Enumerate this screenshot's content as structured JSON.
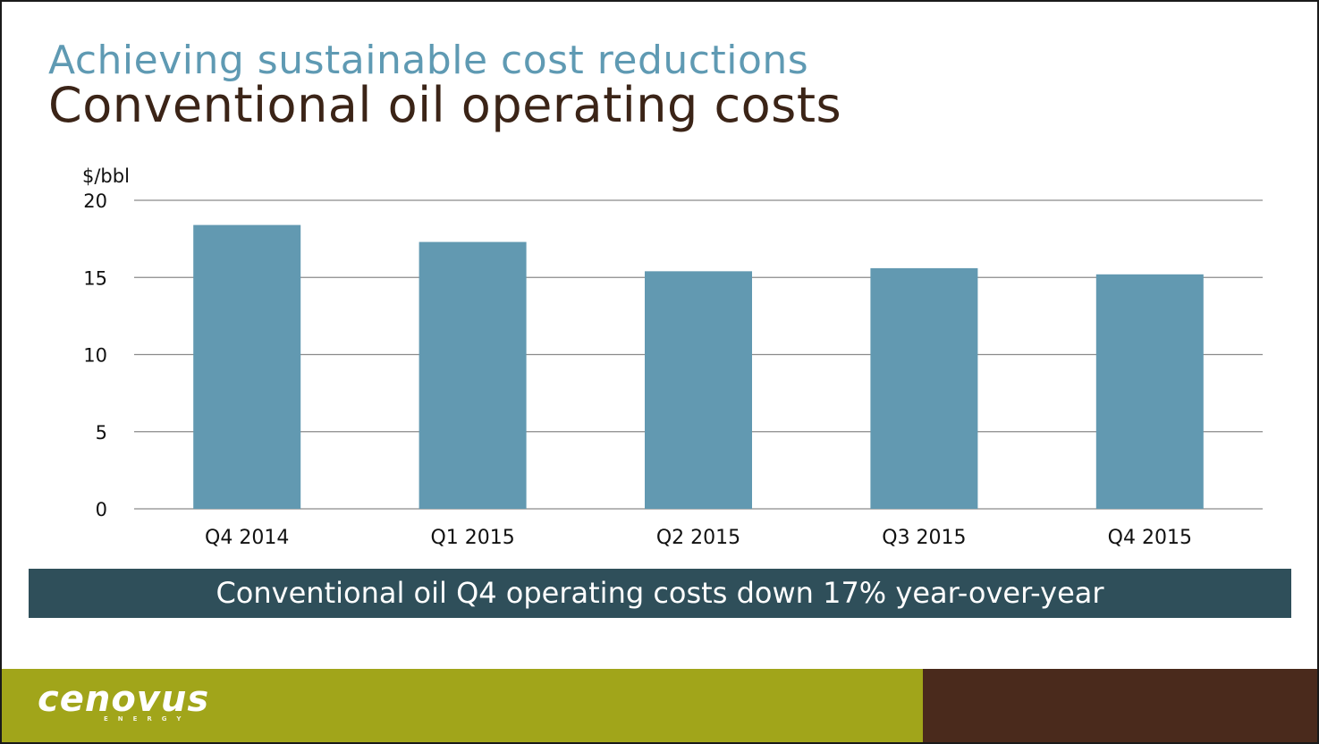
{
  "slide": {
    "subtitle": "Achieving sustainable cost reductions",
    "title": "Conventional oil operating costs",
    "banner": "Conventional oil Q4 operating costs down 17% year-over-year",
    "logo_text": "cenovus",
    "logo_subtext": "ENERGY"
  },
  "colors": {
    "subtitle": "#5f9ab3",
    "title": "#3b2417",
    "bar": "#6299b1",
    "banner": "#2f4f5a",
    "footer_olive": "#a1a51a",
    "footer_brown": "#4a2a1c"
  },
  "chart_data": {
    "type": "bar",
    "title": "",
    "xlabel": "",
    "ylabel": "$/bbl",
    "categories": [
      "Q4 2014",
      "Q1 2015",
      "Q2 2015",
      "Q3 2015",
      "Q4 2015"
    ],
    "values": [
      18.4,
      17.3,
      15.4,
      15.6,
      15.2
    ],
    "ylim": [
      0,
      20
    ],
    "yticks": [
      0,
      5,
      10,
      15,
      20
    ],
    "grid": true,
    "legend": "none"
  }
}
